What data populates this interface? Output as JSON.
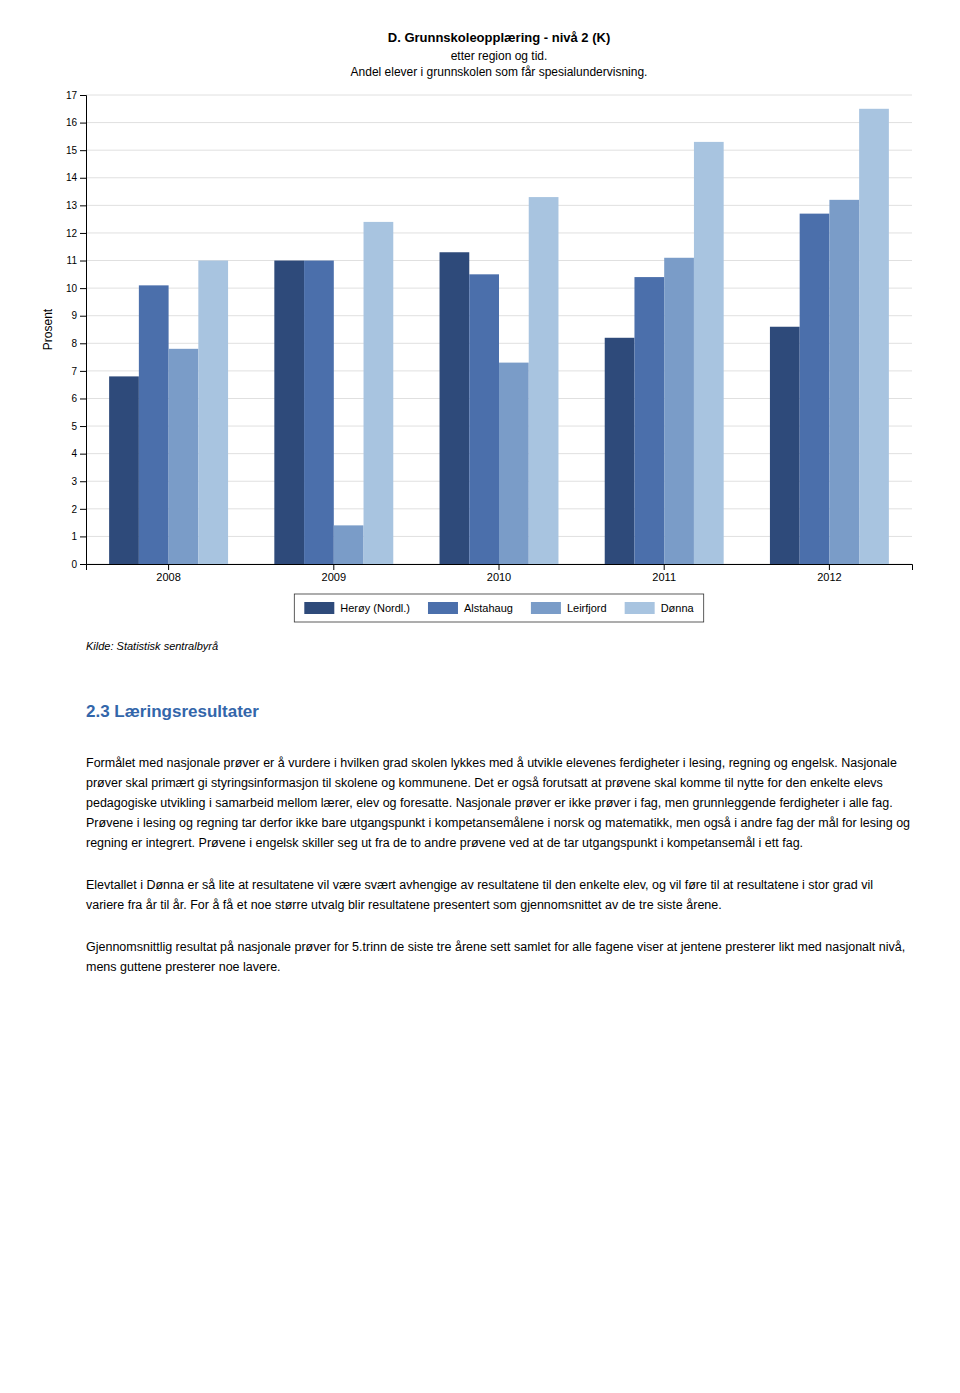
{
  "chart_data": {
    "type": "bar",
    "title": "D. Grunnskoleopplæring - nivå 2 (K)",
    "subtitle": [
      "etter region og tid.",
      "Andel elever i grunnskolen som får spesialundervisning."
    ],
    "ylabel": "Prosent",
    "source": "Kilde: Statistisk sentralbyrå",
    "categories": [
      "2008",
      "2009",
      "2010",
      "2011",
      "2012"
    ],
    "series": [
      {
        "name": "Herøy (Nordl.)",
        "color": "#2E4A7A",
        "values": [
          6.8,
          11.0,
          11.3,
          8.2,
          8.6
        ]
      },
      {
        "name": "Alstahaug",
        "color": "#4B6FAB",
        "values": [
          10.1,
          11.0,
          10.5,
          10.4,
          12.7
        ]
      },
      {
        "name": "Leirfjord",
        "color": "#7A9CC8",
        "values": [
          7.8,
          1.4,
          7.3,
          11.1,
          13.2
        ]
      },
      {
        "name": "Dønna",
        "color": "#A8C4E0",
        "values": [
          11.0,
          12.4,
          13.3,
          15.3,
          16.5
        ]
      }
    ],
    "ylim": [
      0,
      17
    ],
    "yticks": [
      0,
      1,
      2,
      3,
      4,
      5,
      6,
      7,
      8,
      9,
      10,
      11,
      12,
      13,
      14,
      15,
      16,
      17
    ],
    "grid": true,
    "legend": "bottom"
  },
  "section_heading": "2.3 Læringsresultater",
  "paragraphs": [
    "Formålet med nasjonale prøver er å vurdere i hvilken grad skolen lykkes med å utvikle elevenes ferdigheter i lesing, regning og engelsk.  Nasjonale prøver skal primært gi styringsinformasjon til skolene og kommunene.  Det er også forutsatt at prøvene skal komme til nytte for den enkelte elevs pedagogiske utvikling i samarbeid mellom lærer, elev og foresatte.  Nasjonale prøver er ikke prøver i fag, men grunnleggende ferdigheter i alle fag.  Prøvene i lesing og regning tar derfor ikke bare utgangspunkt i kompetansemålene i norsk og matematikk, men også i andre fag der mål for lesing og regning er integrert.  Prøvene i engelsk skiller seg ut fra de to andre prøvene ved at de tar utgangspunkt i kompetansemål i ett fag.",
    "Elevtallet i Dønna er så lite at resultatene vil være svært avhengige av resultatene til den enkelte elev, og vil føre til at resultatene i stor grad vil variere fra år til år.  For å få et noe større utvalg blir resultatene presentert som gjennomsnittet av de tre siste årene.",
    "Gjennomsnittlig resultat på nasjonale prøver for 5.trinn de siste tre årene sett samlet for alle fagene viser at jentene presterer likt med nasjonalt nivå, mens guttene presterer noe lavere."
  ]
}
